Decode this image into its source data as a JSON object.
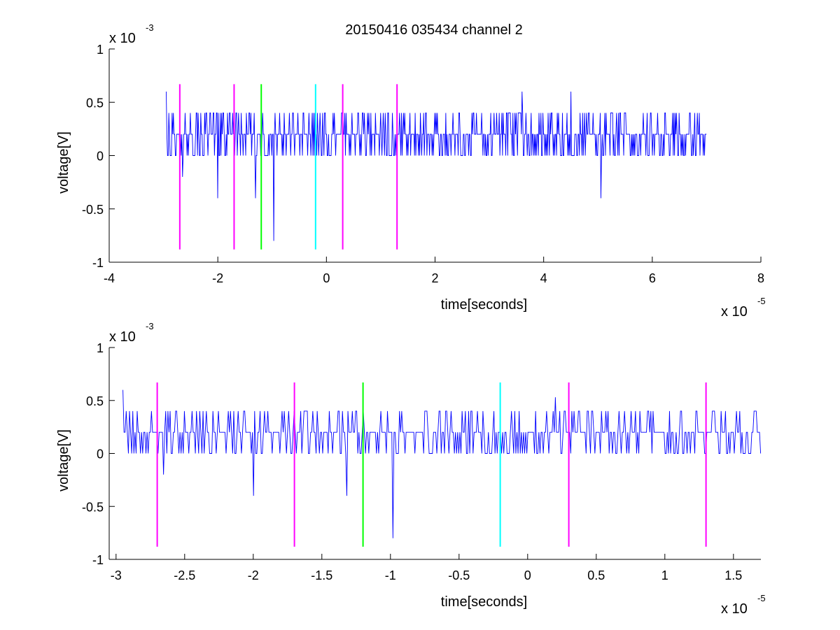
{
  "title": "20150416 035434 channel 2",
  "colors": {
    "signal": "#0000ff",
    "magenta": "#ff00ff",
    "green": "#00ff00",
    "cyan": "#00ffff",
    "axes": "#000000"
  },
  "chart_data": [
    {
      "type": "line",
      "title": "20150416 035434 channel 2",
      "xlabel": "time[seconds]",
      "ylabel": "voltage[V]",
      "x_exponent_text": "x 10",
      "x_exponent_power": "-5",
      "y_exponent_text": "x 10",
      "y_exponent_power": "-3",
      "xlim": [
        -4,
        8
      ],
      "ylim": [
        -1,
        1
      ],
      "x_ticks": [
        -4,
        -2,
        0,
        2,
        4,
        6,
        8
      ],
      "x_tick_labels": [
        "-4",
        "-2",
        "0",
        "2",
        "4",
        "6",
        "8"
      ],
      "y_ticks": [
        1,
        0.5,
        0,
        -0.5,
        -1
      ],
      "y_tick_labels": [
        "1",
        "0.5",
        "0",
        "-0.5",
        "-1"
      ],
      "series": [
        {
          "x_start": -2.95,
          "x_end": 7.0,
          "levels": [
            0.0,
            0.2,
            0.4
          ],
          "baseline": 0.2
        }
      ],
      "vertical_markers": [
        {
          "x": -2.7,
          "color": "magenta",
          "ymin": -0.88,
          "ymax": 0.67
        },
        {
          "x": -1.7,
          "color": "magenta",
          "ymin": -0.88,
          "ymax": 0.67
        },
        {
          "x": -1.2,
          "color": "green",
          "ymin": -0.88,
          "ymax": 0.67
        },
        {
          "x": -0.2,
          "color": "cyan",
          "ymin": -0.88,
          "ymax": 0.67
        },
        {
          "x": 0.3,
          "color": "magenta",
          "ymin": -0.88,
          "ymax": 0.67
        },
        {
          "x": 1.3,
          "color": "magenta",
          "ymin": -0.88,
          "ymax": 0.67
        }
      ],
      "notable_points": [
        {
          "x": -2.95,
          "y": 0.6
        },
        {
          "x": -2.65,
          "y": -0.2
        },
        {
          "x": -2.0,
          "y": -0.4
        },
        {
          "x": -1.3,
          "y": -0.4
        },
        {
          "x": -0.97,
          "y": -0.8
        },
        {
          "x": 5.05,
          "y": -0.4
        },
        {
          "x": 3.6,
          "y": 0.6
        },
        {
          "x": 4.5,
          "y": 0.6
        }
      ]
    },
    {
      "type": "line",
      "title": "",
      "xlabel": "time[seconds]",
      "ylabel": "voltage[V]",
      "x_exponent_text": "x 10",
      "x_exponent_power": "-5",
      "y_exponent_text": "x 10",
      "y_exponent_power": "-3",
      "xlim": [
        -3.05,
        1.7
      ],
      "ylim": [
        -1,
        1
      ],
      "x_ticks": [
        -3,
        -2.5,
        -2,
        -1.5,
        -1,
        -0.5,
        0,
        0.5,
        1,
        1.5
      ],
      "x_tick_labels": [
        "-3",
        "-2.5",
        "-2",
        "-1.5",
        "-1",
        "-0.5",
        "0",
        "0.5",
        "1",
        "1.5"
      ],
      "y_ticks": [
        1,
        0.5,
        0,
        -0.5,
        -1
      ],
      "y_tick_labels": [
        "1",
        "0.5",
        "0",
        "-0.5",
        "-1"
      ],
      "series": [
        {
          "x_start": -2.95,
          "x_end": 1.7,
          "levels": [
            0.0,
            0.2,
            0.4
          ],
          "baseline": 0.2
        }
      ],
      "vertical_markers": [
        {
          "x": -2.7,
          "color": "magenta",
          "ymin": -0.88,
          "ymax": 0.67
        },
        {
          "x": -1.7,
          "color": "magenta",
          "ymin": -0.88,
          "ymax": 0.67
        },
        {
          "x": -1.2,
          "color": "green",
          "ymin": -0.88,
          "ymax": 0.67
        },
        {
          "x": -0.2,
          "color": "cyan",
          "ymin": -0.88,
          "ymax": 0.67
        },
        {
          "x": 0.3,
          "color": "magenta",
          "ymin": -0.88,
          "ymax": 0.67
        },
        {
          "x": 1.3,
          "color": "magenta",
          "ymin": -0.88,
          "ymax": 0.67
        }
      ],
      "notable_points": [
        {
          "x": -2.95,
          "y": 0.6
        },
        {
          "x": -2.65,
          "y": -0.2
        },
        {
          "x": -2.0,
          "y": -0.4
        },
        {
          "x": -1.32,
          "y": -0.4
        },
        {
          "x": -0.98,
          "y": -0.8
        },
        {
          "x": 0.2,
          "y": 0.53
        },
        {
          "x": 0.38,
          "y": 0.4
        }
      ]
    }
  ]
}
